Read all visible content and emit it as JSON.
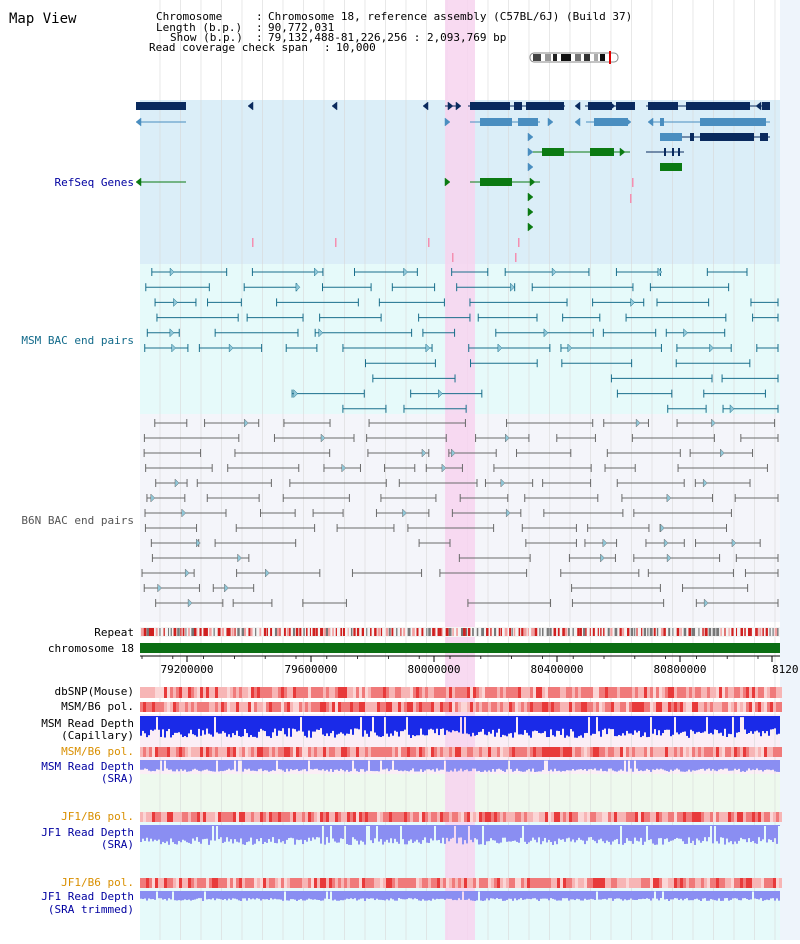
{
  "title": "Map View",
  "header": {
    "chromosome_label": "Chromosome",
    "chromosome_value": "Chromosome 18, reference assembly (C57BL/6J) (Build 37)",
    "length_label": "Length (b.p.)",
    "length_value": "90,772,031",
    "show_label": "Show (b.p.)",
    "show_value": "79,132,488-81,226,256 : 2,093,769 bp",
    "coverage_label": "Read coverage check span",
    "coverage_value": "10,000"
  },
  "tracks": {
    "refseq": "RefSeq Genes",
    "msm_bac": "MSM BAC end pairs",
    "b6n_bac": "B6N BAC end pairs",
    "repeat": "Repeat",
    "chromosome": "chromosome 18",
    "dbsnp": "dbSNP(Mouse)",
    "msm_b6_pol": "MSM/B6 pol.",
    "msm_read_depth_cap_1": "MSM Read Depth",
    "msm_read_depth_cap_2": "(Capillary)",
    "msm_b6_pol_2": "MSM/B6 pol.",
    "msm_read_depth_sra_1": "MSM Read Depth",
    "msm_read_depth_sra_2": "(SRA)",
    "jf1_b6_pol": "JF1/B6 pol.",
    "jf1_read_depth_sra_1": "JF1 Read Depth",
    "jf1_read_depth_sra_2": "(SRA)",
    "jf1_b6_pol_2": "JF1/B6 pol.",
    "jf1_read_depth_trim_1": "JF1 Read Depth",
    "jf1_read_depth_trim_2": "(SRA trimmed)"
  },
  "ruler": {
    "ticks": [
      "79200000",
      "79600000",
      "80000000",
      "80400000",
      "80800000",
      "8120"
    ]
  },
  "colors": {
    "refseq_bg": "#dbeef8",
    "msm_bg": "#e6fafa",
    "b6n_bg": "#f4f5fa",
    "highlight": "#f7d3ee",
    "gene_dark": "#0a2a5e",
    "gene_mid": "#4a8ec0",
    "gene_green": "#0b7a12",
    "msm_line": "#1a6f8c",
    "b6n_line": "#6a6a6a",
    "chromosome_bar": "#0b6e13",
    "depth_blue": "#1a2ae8",
    "depth_lavender": "#8a8ef2",
    "label_blue": "#0000a0",
    "label_orange": "#d98f00",
    "label_teal": "#126a8a"
  }
}
